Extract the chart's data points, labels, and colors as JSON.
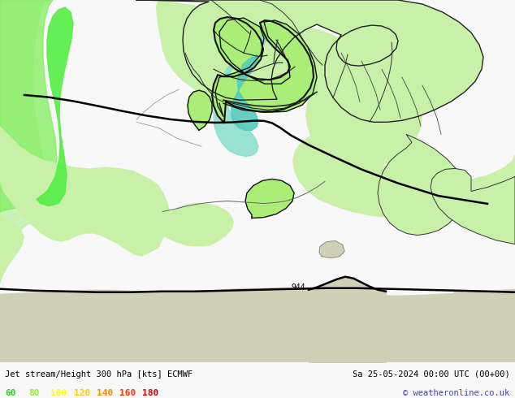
{
  "title_left": "Jet stream/Height 300 hPa [kts] ECMWF",
  "title_right": "Sa 25-05-2024 00:00 UTC (00+00)",
  "copyright": "© weatheronline.co.uk",
  "legend_values": [
    "60",
    "80",
    "100",
    "120",
    "140",
    "160",
    "180"
  ],
  "legend_colors": [
    "#33cc33",
    "#99ee33",
    "#ffff00",
    "#ffcc00",
    "#ff8800",
    "#ff3300",
    "#cc0000"
  ],
  "bg_sea": "#d8d8d8",
  "bg_land": "#c8f0b0",
  "map_bg": "#e0e0e0",
  "figsize": [
    6.34,
    4.9
  ],
  "dpi": 100,
  "bottom_bar_color": "#f0fff0",
  "annotation_text": "944",
  "jet_cyan_color": "#55ddcc",
  "jet_green_bright": "#55ee44",
  "jet_green_mid": "#99ee55",
  "land_green": "#c0f0a0",
  "border_country": "#222222",
  "border_internal": "#555555"
}
